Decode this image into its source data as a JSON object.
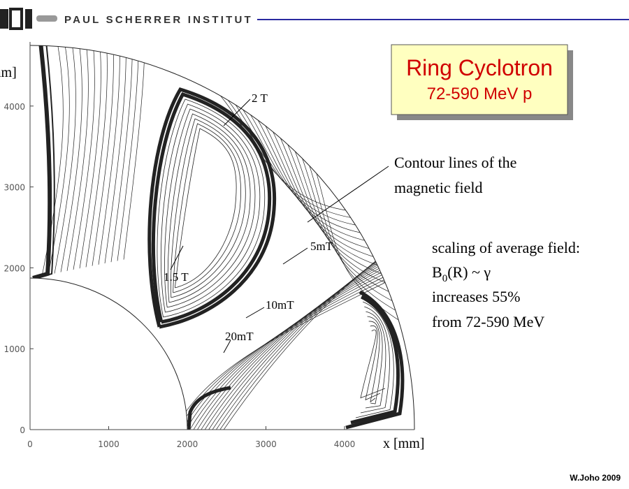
{
  "header": {
    "institute": "PAUL SCHERRER INSTITUT"
  },
  "callout": {
    "line1": "Ring Cyclotron",
    "line2": "72-590 MeV p"
  },
  "figure": {
    "y_label": "mm]",
    "x_label": "x [mm]",
    "xticks": [
      0,
      1000,
      2000,
      3000,
      4000
    ],
    "yticks": [
      0,
      1000,
      2000,
      3000,
      4000
    ],
    "annotations": [
      "2 T",
      "1.5 T",
      "5mT",
      "10mT",
      "20mT"
    ]
  },
  "notes": {
    "contour": [
      "Contour lines of the",
      "magnetic field"
    ],
    "scaling": "scaling of average field:",
    "formula": {
      "base": "B",
      "sub": "0",
      "rest": "(R)  ~ γ"
    },
    "increase": "increases 55%",
    "range": "from 72-590 MeV"
  },
  "footer": "W.Joho 2009"
}
